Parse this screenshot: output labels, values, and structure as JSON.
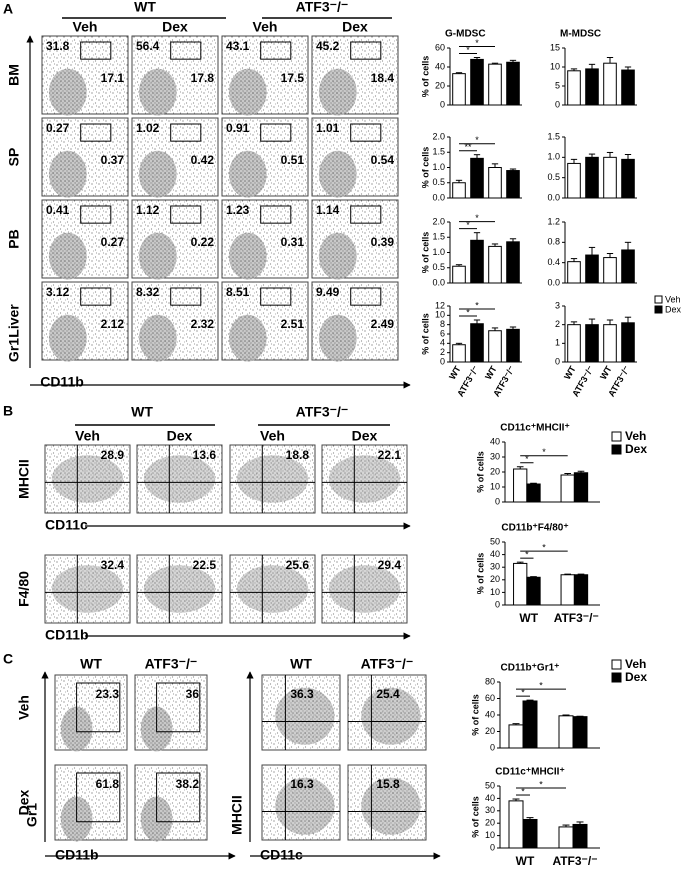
{
  "panels": [
    {
      "label": "A",
      "groups": [
        "WT",
        "ATF3⁻/⁻"
      ],
      "columns": [
        "Veh",
        "Dex",
        "Veh",
        "Dex"
      ],
      "rows": [
        {
          "label": "BM",
          "gates": [
            [
              31.8,
              17.1
            ],
            [
              56.4,
              17.8
            ],
            [
              43.1,
              17.5
            ],
            [
              45.2,
              18.4
            ]
          ]
        },
        {
          "label": "SP",
          "gates": [
            [
              0.27,
              0.37
            ],
            [
              1.02,
              0.42
            ],
            [
              0.91,
              0.51
            ],
            [
              1.01,
              0.54
            ]
          ]
        },
        {
          "label": "PB",
          "gates": [
            [
              0.41,
              0.27
            ],
            [
              1.12,
              0.22
            ],
            [
              1.23,
              0.31
            ],
            [
              1.14,
              0.39
            ]
          ]
        },
        {
          "label": "Liver",
          "gates": [
            [
              3.12,
              2.12
            ],
            [
              8.32,
              2.32
            ],
            [
              8.51,
              2.51
            ],
            [
              9.49,
              2.49
            ]
          ]
        }
      ],
      "y_axis": "Gr1",
      "x_axis": "CD11b",
      "legend": [
        {
          "name": "Veh",
          "color": "#ffffff"
        },
        {
          "name": "Dex",
          "color": "#000000"
        }
      ]
    },
    {
      "label": "B",
      "groups": [
        "WT",
        "ATF3⁻/⁻"
      ],
      "columns": [
        "Veh",
        "Dex",
        "Veh",
        "Dex"
      ],
      "rows": [
        {
          "y_axis": "MHCII",
          "x_axis": "CD11c",
          "gates": [
            28.9,
            13.6,
            18.8,
            22.1
          ]
        },
        {
          "y_axis": "F4/80",
          "x_axis": "CD11b",
          "gates": [
            32.4,
            22.5,
            25.6,
            29.4
          ]
        }
      ]
    },
    {
      "label": "C",
      "row_labels": [
        "Veh",
        "Dex"
      ],
      "blocks": [
        {
          "columns": [
            "WT",
            "ATF3⁻/⁻"
          ],
          "y_axis": "Gr1",
          "x_axis": "CD11b",
          "gates": [
            [
              23.3,
              36
            ],
            [
              61.8,
              38.2
            ]
          ]
        },
        {
          "columns": [
            "WT",
            "ATF3⁻/⁻"
          ],
          "y_axis": "MHCII",
          "x_axis": "CD11c",
          "gates": [
            [
              36.3,
              25.4
            ],
            [
              16.3,
              15.8
            ]
          ]
        }
      ]
    }
  ],
  "chart_data": [
    {
      "type": "bar",
      "title": "G-MDSC",
      "ylabel": "% of cells",
      "categories": [
        null,
        null,
        null,
        null
      ],
      "values": [
        33,
        48,
        43,
        45
      ],
      "errors": [
        1,
        2,
        1,
        2
      ],
      "colors": [
        "#ffffff",
        "#000000",
        "#ffffff",
        "#000000"
      ],
      "ylim": [
        0,
        60
      ],
      "yticks": [
        0,
        20,
        40,
        60
      ],
      "comparisons": [
        {
          "bars": [
            0,
            1
          ],
          "label": "*"
        },
        {
          "bars": [
            0,
            2
          ],
          "label": "*"
        }
      ]
    },
    {
      "type": "bar",
      "title": "M-MDSC",
      "categories": [
        null,
        null,
        null,
        null
      ],
      "values": [
        9,
        9.5,
        11,
        9.2
      ],
      "errors": [
        0.5,
        1.2,
        1.5,
        0.8
      ],
      "colors": [
        "#ffffff",
        "#000000",
        "#ffffff",
        "#000000"
      ],
      "ylim": [
        0,
        15
      ],
      "yticks": [
        0,
        5,
        10,
        15
      ]
    },
    {
      "type": "bar",
      "ylabel": "% of cells",
      "categories": [
        null,
        null,
        null,
        null
      ],
      "values": [
        0.5,
        1.3,
        1.0,
        0.9
      ],
      "errors": [
        0.08,
        0.12,
        0.12,
        0.05
      ],
      "colors": [
        "#ffffff",
        "#000000",
        "#ffffff",
        "#000000"
      ],
      "ylim": [
        0,
        2
      ],
      "yticks": [
        {
          "value": 0,
          "label": "0.0"
        },
        0.5,
        {
          "value": 1,
          "label": "1.0"
        },
        1.5,
        {
          "value": 2,
          "label": "2.0"
        }
      ],
      "comparisons": [
        {
          "bars": [
            0,
            1
          ],
          "label": "**"
        },
        {
          "bars": [
            0,
            2
          ],
          "label": "*"
        }
      ]
    },
    {
      "type": "bar",
      "categories": [
        null,
        null,
        null,
        null
      ],
      "values": [
        0.85,
        1.0,
        1.0,
        0.95
      ],
      "errors": [
        0.1,
        0.08,
        0.12,
        0.12
      ],
      "colors": [
        "#ffffff",
        "#000000",
        "#ffffff",
        "#000000"
      ],
      "ylim": [
        0,
        1.5
      ],
      "yticks": [
        {
          "value": 0,
          "label": "0.0"
        },
        0.5,
        {
          "value": 1,
          "label": "1.0"
        },
        1.5
      ]
    },
    {
      "type": "bar",
      "ylabel": "% of cells",
      "categories": [
        null,
        null,
        null,
        null
      ],
      "values": [
        0.55,
        1.4,
        1.2,
        1.35
      ],
      "errors": [
        0.05,
        0.25,
        0.08,
        0.1
      ],
      "colors": [
        "#ffffff",
        "#000000",
        "#ffffff",
        "#000000"
      ],
      "ylim": [
        0,
        2
      ],
      "yticks": [
        {
          "value": 0,
          "label": "0.0"
        },
        0.5,
        {
          "value": 1,
          "label": "1.0"
        },
        1.5,
        {
          "value": 2,
          "label": "2.0"
        }
      ],
      "comparisons": [
        {
          "bars": [
            0,
            1
          ],
          "label": "*"
        },
        {
          "bars": [
            0,
            2
          ],
          "label": "*"
        }
      ]
    },
    {
      "type": "bar",
      "categories": [
        null,
        null,
        null,
        null
      ],
      "values": [
        0.42,
        0.55,
        0.5,
        0.65
      ],
      "errors": [
        0.06,
        0.15,
        0.08,
        0.15
      ],
      "colors": [
        "#ffffff",
        "#000000",
        "#ffffff",
        "#000000"
      ],
      "ylim": [
        0,
        1.2
      ],
      "yticks": [
        {
          "value": 0,
          "label": "0.0"
        },
        0.4,
        0.8,
        1.2
      ]
    },
    {
      "type": "bar",
      "ylabel": "% of cells",
      "categories": [
        "WT",
        "ATF3⁻/⁻",
        "WT",
        "ATF3⁻/⁻"
      ],
      "values": [
        3.7,
        8.2,
        6.7,
        7.0
      ],
      "errors": [
        0.3,
        0.8,
        0.6,
        0.5
      ],
      "colors": [
        "#ffffff",
        "#000000",
        "#ffffff",
        "#000000"
      ],
      "ylim": [
        0,
        12
      ],
      "yticks": [
        0,
        2,
        4,
        6,
        8,
        10,
        12
      ],
      "comparisons": [
        {
          "bars": [
            0,
            1
          ],
          "label": "*"
        },
        {
          "bars": [
            0,
            2
          ],
          "label": "*"
        }
      ]
    },
    {
      "type": "bar",
      "categories": [
        "WT",
        "ATF3⁻/⁻",
        "WT",
        "ATF3⁻/⁻"
      ],
      "values": [
        2.0,
        2.0,
        2.0,
        2.1
      ],
      "errors": [
        0.15,
        0.3,
        0.25,
        0.3
      ],
      "colors": [
        "#ffffff",
        "#000000",
        "#ffffff",
        "#000000"
      ],
      "ylim": [
        0,
        3
      ],
      "yticks": [
        0,
        1,
        2,
        3
      ]
    },
    {
      "type": "bar",
      "title": "CD11c⁺MHCII⁺",
      "ylabel": "% of cells",
      "categories": [
        null,
        null
      ],
      "series": [
        {
          "name": "Veh",
          "color": "#ffffff",
          "values": [
            22,
            18
          ],
          "errors": [
            1.5,
            1
          ]
        },
        {
          "name": "Dex",
          "color": "#000000",
          "values": [
            12,
            19.5
          ],
          "errors": [
            0.5,
            1
          ]
        }
      ],
      "ylim": [
        0,
        40
      ],
      "yticks": [
        0,
        10,
        20,
        30,
        40
      ],
      "comparisons": [
        {
          "bars": [
            0,
            1
          ],
          "label": "*"
        },
        {
          "bars": [
            0,
            2
          ],
          "label": "*"
        }
      ]
    },
    {
      "type": "bar",
      "title": "CD11b⁺F4/80⁺",
      "ylabel": "% of cells",
      "categories": [
        "WT",
        "ATF3⁻/⁻"
      ],
      "series": [
        {
          "name": "Veh",
          "color": "#ffffff",
          "values": [
            33,
            24
          ],
          "errors": [
            1,
            0.5
          ]
        },
        {
          "name": "Dex",
          "color": "#000000",
          "values": [
            22,
            24
          ],
          "errors": [
            0.5,
            0.5
          ]
        }
      ],
      "ylim": [
        0,
        50
      ],
      "yticks": [
        0,
        10,
        20,
        30,
        40,
        50
      ],
      "comparisons": [
        {
          "bars": [
            0,
            1
          ],
          "label": "*"
        },
        {
          "bars": [
            0,
            2
          ],
          "label": "*"
        }
      ]
    },
    {
      "type": "bar",
      "title": "CD11b⁺Gr1⁺",
      "ylabel": "% of cells",
      "categories": [
        null,
        null
      ],
      "series": [
        {
          "name": "Veh",
          "color": "#ffffff",
          "values": [
            28,
            39
          ],
          "errors": [
            1.5,
            1
          ]
        },
        {
          "name": "Dex",
          "color": "#000000",
          "values": [
            57,
            38
          ],
          "errors": [
            1,
            0.5
          ]
        }
      ],
      "ylim": [
        0,
        80
      ],
      "yticks": [
        0,
        20,
        40,
        60,
        80
      ],
      "comparisons": [
        {
          "bars": [
            0,
            1
          ],
          "label": "*"
        },
        {
          "bars": [
            0,
            2
          ],
          "label": "*"
        }
      ]
    },
    {
      "type": "bar",
      "title": "CD11c⁺MHCII⁺",
      "ylabel": "% of cells",
      "categories": [
        "WT",
        "ATF3⁻/⁻"
      ],
      "series": [
        {
          "name": "Veh",
          "color": "#ffffff",
          "values": [
            38,
            17
          ],
          "errors": [
            1.5,
            1.5
          ]
        },
        {
          "name": "Dex",
          "color": "#000000",
          "values": [
            23,
            19
          ],
          "errors": [
            1.5,
            2
          ]
        }
      ],
      "ylim": [
        0,
        50
      ],
      "yticks": [
        0,
        10,
        20,
        30,
        40,
        50
      ],
      "comparisons": [
        {
          "bars": [
            0,
            1
          ],
          "label": "*"
        },
        {
          "bars": [
            0,
            2
          ],
          "label": "*"
        }
      ]
    }
  ]
}
